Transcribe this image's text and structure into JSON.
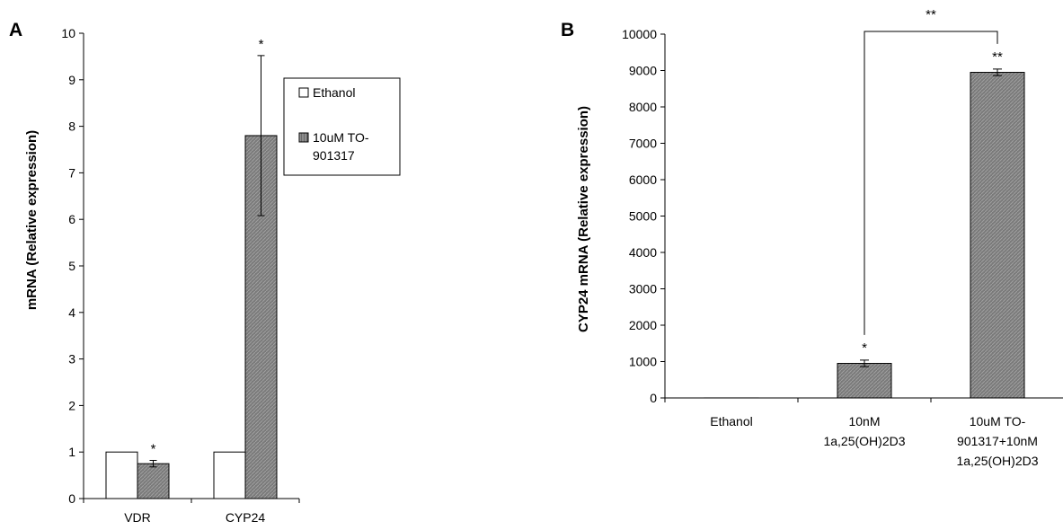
{
  "colors": {
    "ethanol_fill": "#ffffff",
    "treated_fill": "#7a7a7a",
    "treated_hatch": "#a0a0a0",
    "axis": "#000000"
  },
  "chart_data": [
    {
      "panel": "A",
      "type": "bar",
      "ylabel": "mRNA (Relative expression)",
      "ylim": [
        0,
        10
      ],
      "yticks": [
        "0",
        "1",
        "2",
        "3",
        "4",
        "5",
        "6",
        "7",
        "8",
        "9",
        "10"
      ],
      "categories": [
        "VDR",
        "CYP24"
      ],
      "series": [
        {
          "name": "Ethanol",
          "values": [
            1.0,
            1.0
          ],
          "errors": [
            0,
            0
          ],
          "significance": [
            "",
            ""
          ]
        },
        {
          "name": "10uM TO-901317",
          "values": [
            0.75,
            7.8
          ],
          "errors": [
            0.07,
            1.72
          ],
          "significance": [
            "*",
            "*"
          ]
        }
      ],
      "legend": {
        "placement": "top-right",
        "entries": [
          {
            "lines": [
              "Ethanol"
            ]
          },
          {
            "lines": [
              "10uM TO-",
              "901317"
            ]
          }
        ]
      },
      "grid": false
    },
    {
      "panel": "B",
      "type": "bar",
      "ylabel": "CYP24 mRNA (Relative expression)",
      "ylim": [
        0,
        10000
      ],
      "yticks": [
        "0",
        "1000",
        "2000",
        "3000",
        "4000",
        "5000",
        "6000",
        "7000",
        "8000",
        "9000",
        "10000"
      ],
      "categories": [
        {
          "lines": [
            "Ethanol"
          ]
        },
        {
          "lines": [
            "10nM",
            "1a,25(OH)2D3"
          ]
        },
        {
          "lines": [
            "10uM TO-",
            "901317+10nM",
            "1a,25(OH)2D3"
          ]
        }
      ],
      "values": [
        1,
        950,
        8950
      ],
      "errors": [
        0,
        90,
        90
      ],
      "significance": [
        "",
        "*",
        "**"
      ],
      "bracket": {
        "from_category": 1,
        "to_category": 2,
        "label": "**"
      },
      "grid": false
    }
  ]
}
